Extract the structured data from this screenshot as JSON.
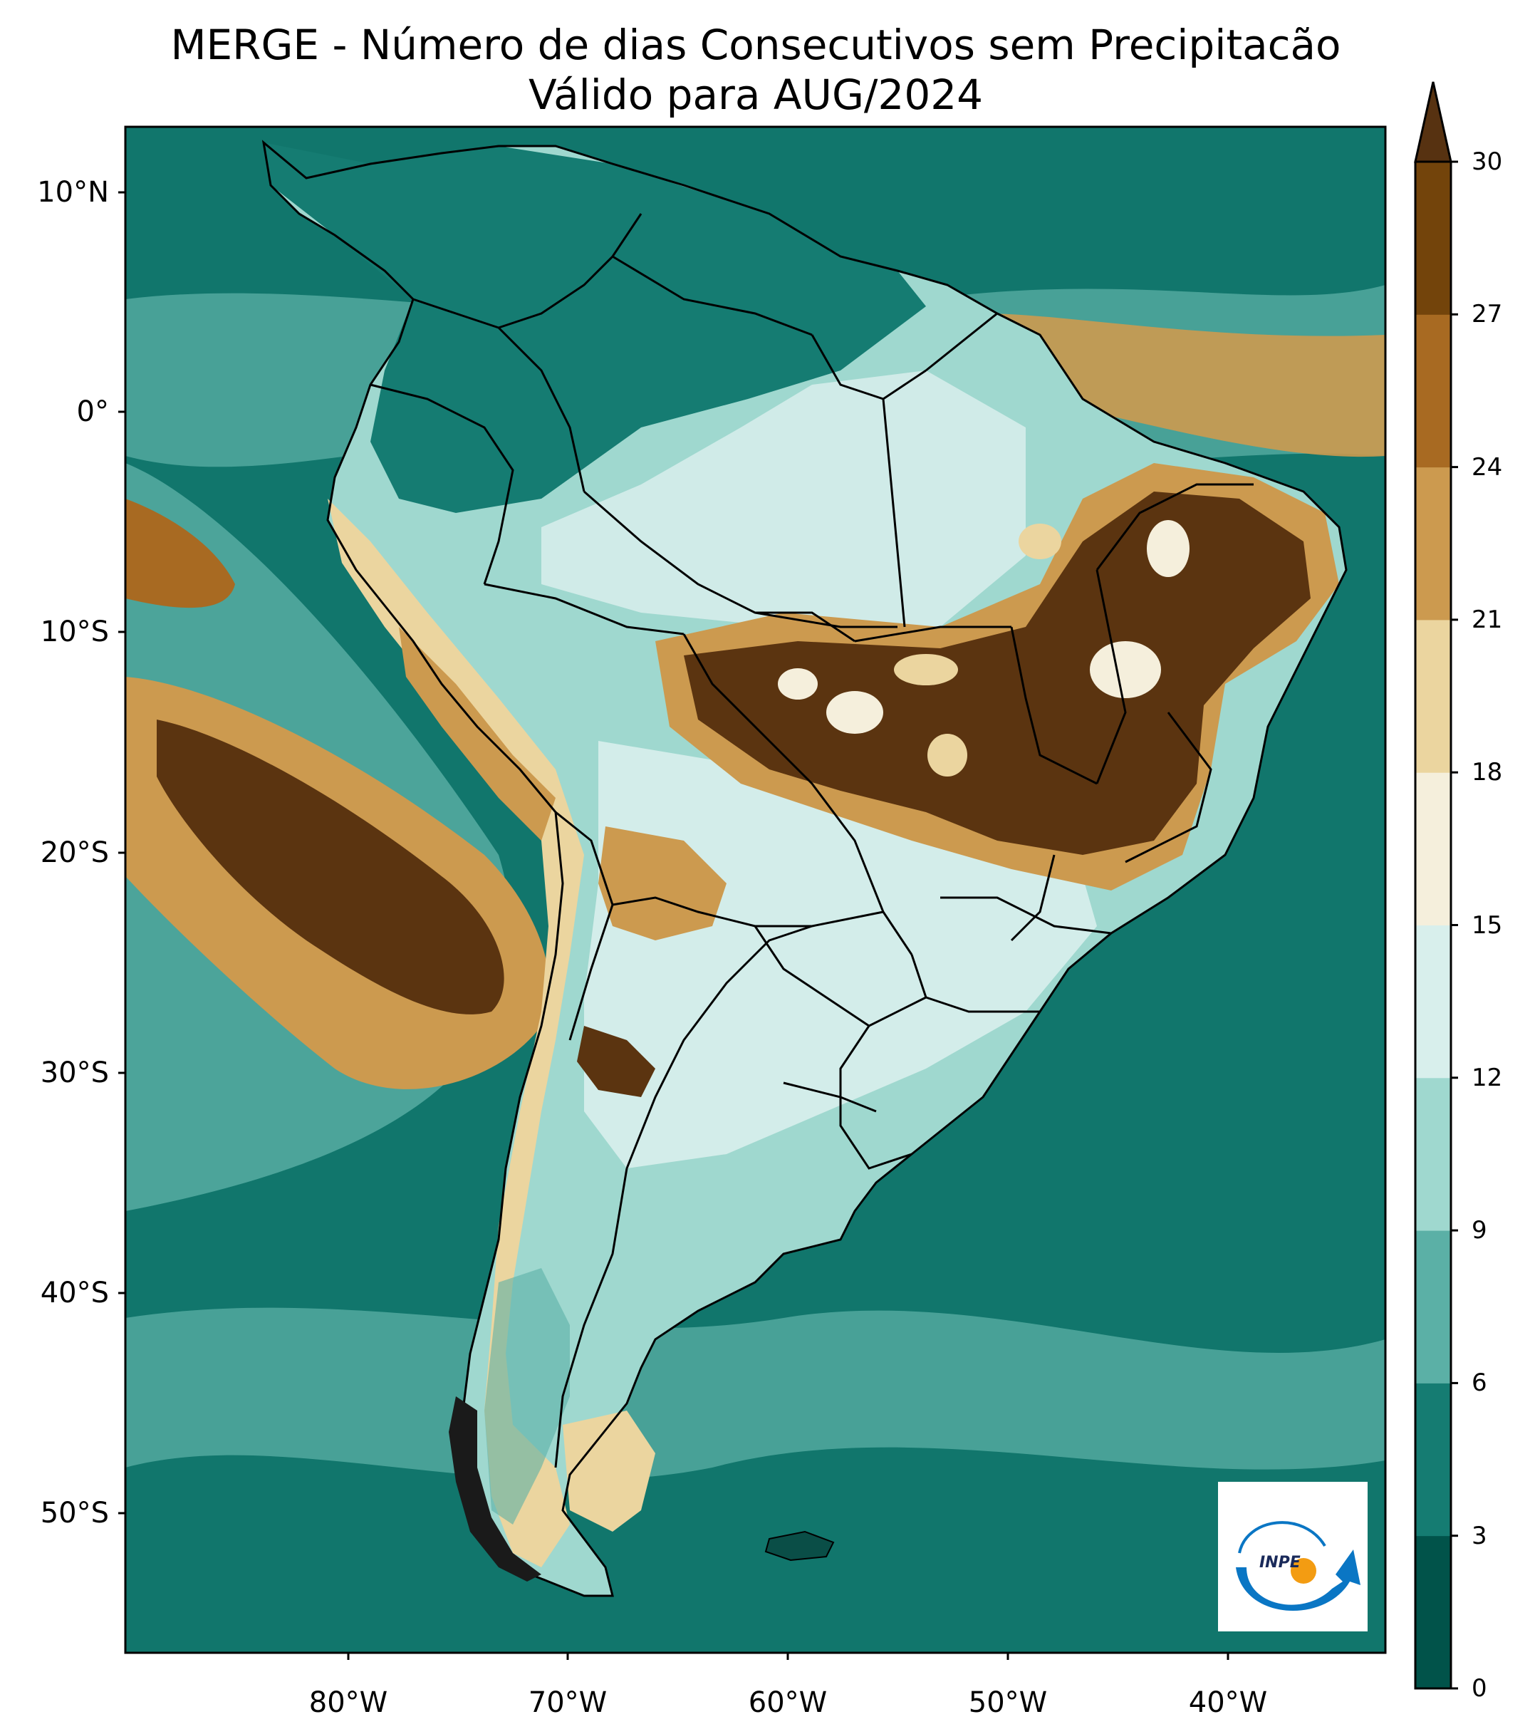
{
  "title": {
    "line1": "MERGE - Número de dias Consecutivos sem Precipitacão",
    "line2": "Válido para AUG/2024"
  },
  "map": {
    "lat_labels": [
      "10°N",
      "0°",
      "10°S",
      "20°S",
      "30°S",
      "40°S",
      "50°S"
    ],
    "lon_labels": [
      "80°W",
      "70°W",
      "60°W",
      "50°W",
      "40°W"
    ],
    "land_fill": "#9fd8cf",
    "ocean_fill": "#11766c",
    "dry_core_fill": "#5b3410",
    "dry_edge_fill": "#c8924a",
    "border_color": "#000000"
  },
  "colorbar": {
    "ticks": [
      "0",
      "3",
      "6",
      "9",
      "12",
      "15",
      "18",
      "21",
      "24",
      "27",
      "30"
    ],
    "colors": [
      "#01534a",
      "#157c72",
      "#5bb0a6",
      "#9fd8cf",
      "#d8efec",
      "#f5efdc",
      "#ebd59f",
      "#cc9a4f",
      "#a86a22",
      "#73440b"
    ],
    "extend_color": "#573211",
    "extend": "max"
  },
  "logo": {
    "text": "INPE",
    "arrow_color": "#0a76c4",
    "dot_color": "#f39c12"
  }
}
